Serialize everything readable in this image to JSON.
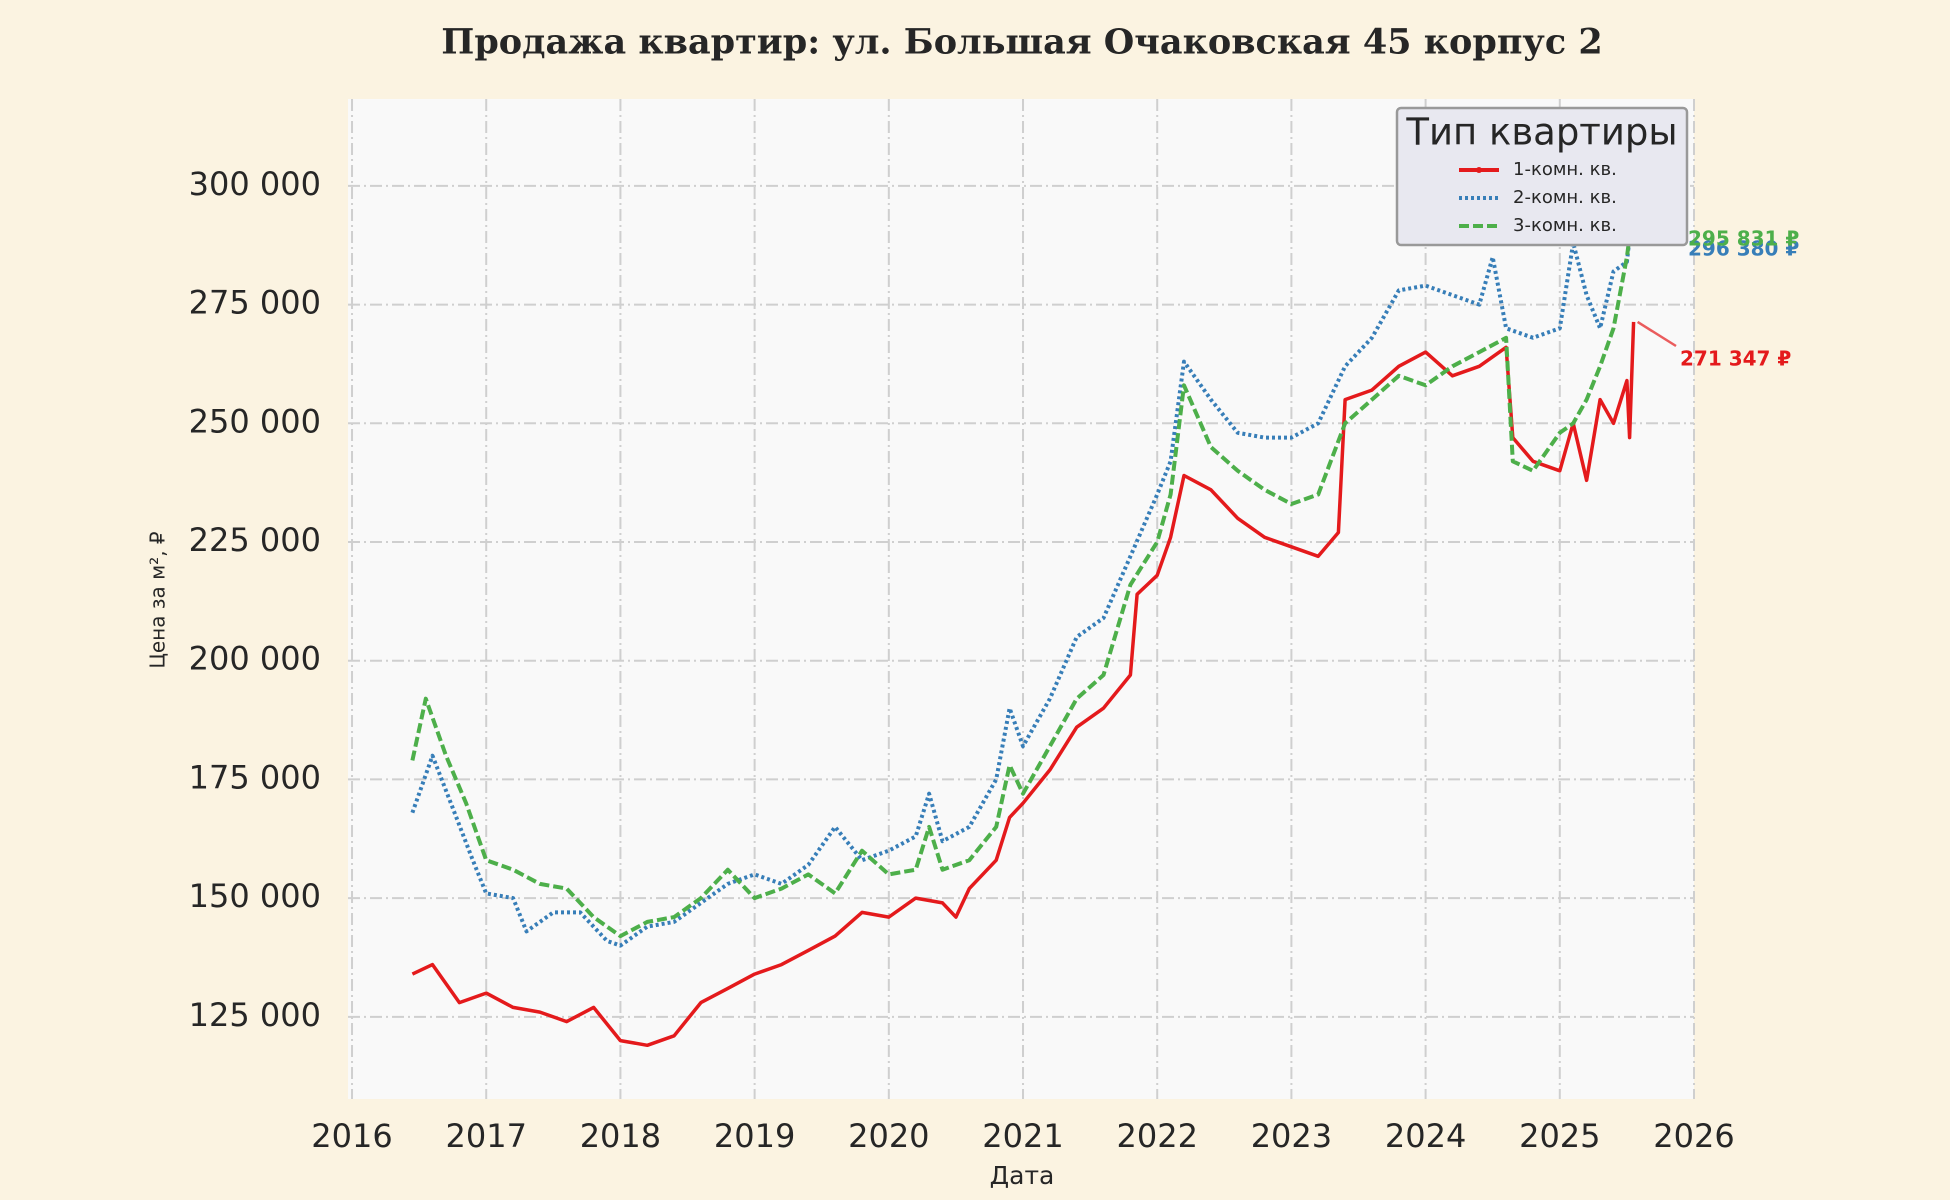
{
  "chart_data": {
    "type": "line",
    "title": "Продажа квартир: ул. Большая Очаковская 45 корпус 2",
    "x_label": "Дата",
    "y_label": "Цена за м², ₽",
    "xlim": [
      2015.97,
      2026.0
    ],
    "xticks": [
      2016,
      2017,
      2018,
      2019,
      2020,
      2021,
      2022,
      2023,
      2024,
      2025,
      2026
    ],
    "ylim": [
      107700,
      318300
    ],
    "yticks": [
      {
        "value": 125000,
        "label": "125 000"
      },
      {
        "value": 150000,
        "label": "150 000"
      },
      {
        "value": 175000,
        "label": "175 000"
      },
      {
        "value": 200000,
        "label": "200 000"
      },
      {
        "value": 225000,
        "label": "225 000"
      },
      {
        "value": 250000,
        "label": "250 000"
      },
      {
        "value": 275000,
        "label": "275 000"
      },
      {
        "value": 300000,
        "label": "300 000"
      }
    ],
    "grid": true,
    "legend_title": "Тип квартиры",
    "legend_position": "upper right",
    "series": [
      {
        "name": "1-комн. кв.",
        "color": "#e41a1c",
        "linestyle": "solid",
        "x": [
          2016.45,
          2016.6,
          2016.8,
          2017.0,
          2017.2,
          2017.4,
          2017.6,
          2017.8,
          2018.0,
          2018.2,
          2018.4,
          2018.6,
          2018.8,
          2019.0,
          2019.2,
          2019.4,
          2019.6,
          2019.8,
          2020.0,
          2020.2,
          2020.4,
          2020.5,
          2020.6,
          2020.8,
          2020.9,
          2021.0,
          2021.2,
          2021.4,
          2021.6,
          2021.8,
          2021.85,
          2022.0,
          2022.1,
          2022.2,
          2022.4,
          2022.6,
          2022.8,
          2023.0,
          2023.2,
          2023.35,
          2023.4,
          2023.6,
          2023.8,
          2024.0,
          2024.2,
          2024.4,
          2024.6,
          2024.65,
          2024.8,
          2025.0,
          2025.1,
          2025.2,
          2025.3,
          2025.4,
          2025.5,
          2025.52,
          2025.55
        ],
        "values": [
          134000,
          136000,
          128000,
          130000,
          127000,
          126000,
          124000,
          127000,
          120000,
          119000,
          121000,
          128000,
          131000,
          134000,
          136000,
          139000,
          142000,
          147000,
          146000,
          150000,
          149000,
          146000,
          152000,
          158000,
          167000,
          170000,
          177000,
          186000,
          190000,
          197000,
          214000,
          218000,
          226000,
          239000,
          236000,
          230000,
          226000,
          224000,
          222000,
          227000,
          255000,
          257000,
          262000,
          265000,
          260000,
          262000,
          266000,
          247000,
          242000,
          240000,
          250000,
          238000,
          255000,
          250000,
          259000,
          247000,
          271347
        ]
      },
      {
        "name": "2-комн. кв.",
        "color": "#377eb8",
        "linestyle": "dotted",
        "x": [
          2016.45,
          2016.6,
          2016.75,
          2016.9,
          2017.0,
          2017.2,
          2017.3,
          2017.5,
          2017.7,
          2017.9,
          2018.0,
          2018.2,
          2018.4,
          2018.6,
          2018.8,
          2019.0,
          2019.2,
          2019.4,
          2019.6,
          2019.8,
          2020.0,
          2020.2,
          2020.3,
          2020.4,
          2020.6,
          2020.8,
          2020.9,
          2021.0,
          2021.2,
          2021.4,
          2021.6,
          2021.8,
          2022.0,
          2022.1,
          2022.2,
          2022.4,
          2022.6,
          2022.8,
          2023.0,
          2023.2,
          2023.4,
          2023.6,
          2023.8,
          2024.0,
          2024.2,
          2024.4,
          2024.5,
          2024.6,
          2024.8,
          2025.0,
          2025.1,
          2025.2,
          2025.3,
          2025.4,
          2025.5,
          2025.55
        ],
        "values": [
          168000,
          180000,
          169000,
          158000,
          151000,
          150000,
          143000,
          147000,
          147000,
          141000,
          140000,
          144000,
          145000,
          149000,
          153000,
          155000,
          153000,
          157000,
          165000,
          158000,
          160000,
          163000,
          172000,
          162000,
          165000,
          175000,
          190000,
          182000,
          192000,
          205000,
          209000,
          222000,
          235000,
          242000,
          263000,
          255000,
          248000,
          247000,
          247000,
          250000,
          262000,
          268000,
          278000,
          279000,
          277000,
          275000,
          285000,
          270000,
          268000,
          270000,
          288000,
          277000,
          270000,
          282000,
          284000,
          296380
        ]
      },
      {
        "name": "3-комн. кв.",
        "color": "#4daf4a",
        "linestyle": "dashed",
        "x": [
          2016.45,
          2016.55,
          2016.7,
          2016.85,
          2017.0,
          2017.2,
          2017.4,
          2017.6,
          2017.8,
          2018.0,
          2018.2,
          2018.4,
          2018.6,
          2018.8,
          2019.0,
          2019.2,
          2019.4,
          2019.6,
          2019.8,
          2020.0,
          2020.2,
          2020.3,
          2020.4,
          2020.6,
          2020.8,
          2020.9,
          2021.0,
          2021.2,
          2021.4,
          2021.6,
          2021.8,
          2022.0,
          2022.1,
          2022.2,
          2022.4,
          2022.6,
          2022.8,
          2023.0,
          2023.2,
          2023.4,
          2023.6,
          2023.8,
          2024.0,
          2024.2,
          2024.4,
          2024.6,
          2024.65,
          2024.8,
          2025.0,
          2025.1,
          2025.2,
          2025.3,
          2025.4,
          2025.5,
          2025.55
        ],
        "values": [
          179000,
          192000,
          180000,
          170000,
          158000,
          156000,
          153000,
          152000,
          146000,
          142000,
          145000,
          146000,
          150000,
          156000,
          150000,
          152000,
          155000,
          151000,
          160000,
          155000,
          156000,
          165000,
          156000,
          158000,
          165000,
          178000,
          172000,
          182000,
          192000,
          197000,
          216000,
          225000,
          235000,
          258000,
          245000,
          240000,
          236000,
          233000,
          235000,
          250000,
          255000,
          260000,
          258000,
          262000,
          265000,
          268000,
          242000,
          240000,
          248000,
          250000,
          255000,
          262000,
          270000,
          285000,
          295831
        ]
      }
    ],
    "annotations": [
      {
        "text": "271 347 ₽",
        "x": 2025.55,
        "y": 271347,
        "color": "#e41a1c"
      },
      {
        "text": "296 380 ₽",
        "x": 2025.55,
        "y": 296380,
        "color": "#377eb8"
      },
      {
        "text": "295 831 ₽",
        "x": 2025.55,
        "y": 295831,
        "color": "#4daf4a"
      }
    ]
  }
}
